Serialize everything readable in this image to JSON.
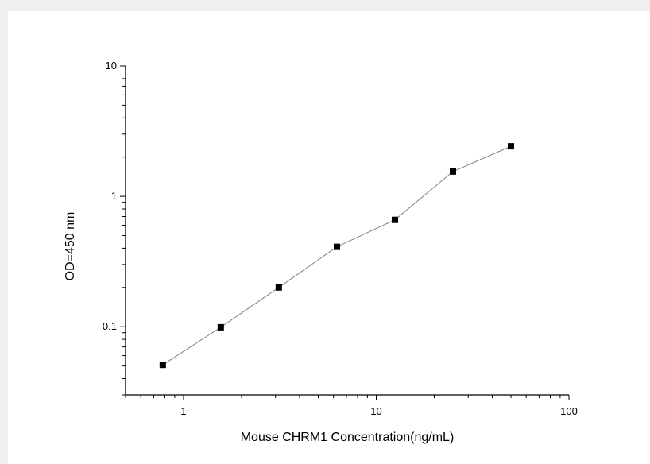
{
  "chart_data": {
    "type": "line",
    "title": "",
    "xlabel": "Mouse CHRM1 Concentration(ng/mL)",
    "ylabel": "OD=450 nm",
    "x_scale": "log",
    "y_scale": "log",
    "xlim": [
      0.5,
      100
    ],
    "ylim": [
      0.03,
      10
    ],
    "x_ticks": [
      {
        "value": 1,
        "label": "1"
      },
      {
        "value": 10,
        "label": "10"
      },
      {
        "value": 100,
        "label": "100"
      }
    ],
    "y_ticks": [
      {
        "value": 0.1,
        "label": "0.1"
      },
      {
        "value": 1,
        "label": "1"
      },
      {
        "value": 10,
        "label": "10"
      }
    ],
    "grid": false,
    "legend": "none",
    "series": [
      {
        "color": "#000000",
        "line_color": "#808080",
        "marker": "square",
        "points": [
          {
            "x": 0.78,
            "y": 0.051
          },
          {
            "x": 1.56,
            "y": 0.099
          },
          {
            "x": 3.12,
            "y": 0.2
          },
          {
            "x": 6.25,
            "y": 0.41
          },
          {
            "x": 12.5,
            "y": 0.66
          },
          {
            "x": 25,
            "y": 1.55
          },
          {
            "x": 50,
            "y": 2.42
          }
        ]
      }
    ]
  }
}
